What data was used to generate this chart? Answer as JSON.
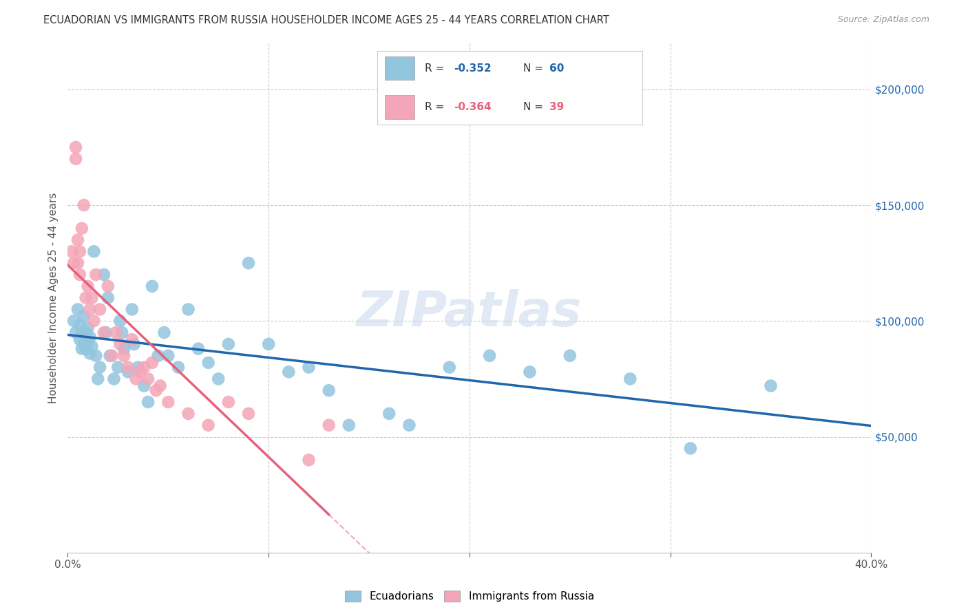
{
  "title": "ECUADORIAN VS IMMIGRANTS FROM RUSSIA HOUSEHOLDER INCOME AGES 25 - 44 YEARS CORRELATION CHART",
  "source": "Source: ZipAtlas.com",
  "ylabel": "Householder Income Ages 25 - 44 years",
  "xlim": [
    0,
    0.4
  ],
  "ylim": [
    0,
    220000
  ],
  "xticks": [
    0.0,
    0.1,
    0.2,
    0.3,
    0.4
  ],
  "xticklabels": [
    "0.0%",
    "",
    "",
    "",
    "40.0%"
  ],
  "yticks": [
    0,
    50000,
    100000,
    150000,
    200000
  ],
  "yticklabels": [
    "",
    "$50,000",
    "$100,000",
    "$150,000",
    "$200,000"
  ],
  "legend_labels": [
    "Ecuadorians",
    "Immigrants from Russia"
  ],
  "blue_color": "#92C5DE",
  "pink_color": "#F4A6B8",
  "blue_line_color": "#2166AC",
  "pink_line_color": "#E8607A",
  "watermark": "ZIPatlas",
  "background_color": "#FFFFFF",
  "grid_color": "#CCCCCC",
  "ecuadorians_x": [
    0.003,
    0.004,
    0.005,
    0.006,
    0.006,
    0.007,
    0.007,
    0.008,
    0.008,
    0.009,
    0.009,
    0.01,
    0.01,
    0.011,
    0.011,
    0.012,
    0.013,
    0.014,
    0.015,
    0.016,
    0.018,
    0.019,
    0.02,
    0.021,
    0.023,
    0.025,
    0.026,
    0.027,
    0.028,
    0.03,
    0.032,
    0.033,
    0.035,
    0.038,
    0.04,
    0.042,
    0.045,
    0.048,
    0.05,
    0.055,
    0.06,
    0.065,
    0.07,
    0.075,
    0.08,
    0.09,
    0.1,
    0.11,
    0.12,
    0.13,
    0.14,
    0.16,
    0.17,
    0.19,
    0.21,
    0.23,
    0.25,
    0.28,
    0.31,
    0.35
  ],
  "ecuadorians_y": [
    100000,
    95000,
    105000,
    92000,
    98000,
    88000,
    95000,
    90000,
    102000,
    88000,
    95000,
    91000,
    97000,
    86000,
    93000,
    89000,
    130000,
    85000,
    75000,
    80000,
    120000,
    95000,
    110000,
    85000,
    75000,
    80000,
    100000,
    95000,
    88000,
    78000,
    105000,
    90000,
    80000,
    72000,
    65000,
    115000,
    85000,
    95000,
    85000,
    80000,
    105000,
    88000,
    82000,
    75000,
    90000,
    125000,
    90000,
    78000,
    80000,
    70000,
    55000,
    60000,
    55000,
    80000,
    85000,
    78000,
    85000,
    75000,
    45000,
    72000
  ],
  "russia_x": [
    0.002,
    0.003,
    0.004,
    0.004,
    0.005,
    0.005,
    0.006,
    0.006,
    0.007,
    0.008,
    0.009,
    0.01,
    0.011,
    0.012,
    0.013,
    0.014,
    0.016,
    0.018,
    0.02,
    0.022,
    0.024,
    0.026,
    0.028,
    0.03,
    0.032,
    0.034,
    0.036,
    0.038,
    0.04,
    0.042,
    0.044,
    0.046,
    0.05,
    0.06,
    0.07,
    0.08,
    0.09,
    0.12,
    0.13
  ],
  "russia_y": [
    130000,
    125000,
    170000,
    175000,
    125000,
    135000,
    120000,
    130000,
    140000,
    150000,
    110000,
    115000,
    105000,
    110000,
    100000,
    120000,
    105000,
    95000,
    115000,
    85000,
    95000,
    90000,
    85000,
    80000,
    92000,
    75000,
    78000,
    80000,
    75000,
    82000,
    70000,
    72000,
    65000,
    60000,
    55000,
    65000,
    60000,
    40000,
    55000
  ]
}
